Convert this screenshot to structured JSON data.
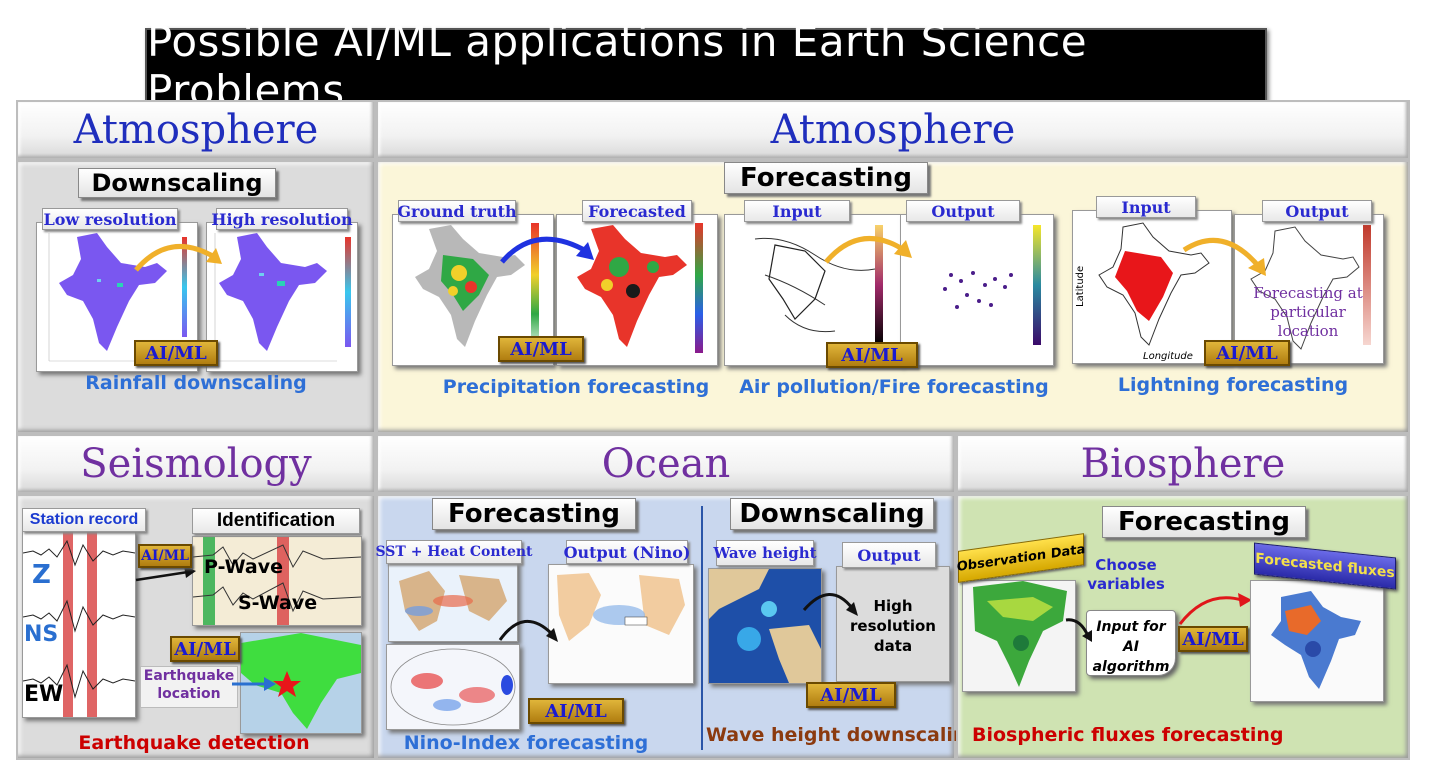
{
  "title": "Possible AI/ML applications in Earth Science Problems",
  "aiml_label": "AI/ML",
  "sections": {
    "atmosphere_left": {
      "header": "Atmosphere",
      "subtitle": "Downscaling",
      "input_tag": "Low resolution",
      "output_tag": "High resolution",
      "caption": "Rainfall downscaling"
    },
    "atmosphere_right": {
      "header": "Atmosphere",
      "subtitle": "Forecasting",
      "precip": {
        "input_tag": "Ground truth",
        "output_tag": "Forecasted",
        "caption": "Precipitation forecasting"
      },
      "air": {
        "input_tag": "Input",
        "output_tag": "Output",
        "caption": "Air pollution/Fire forecasting"
      },
      "lightning": {
        "input_tag": "Input",
        "output_tag": "Output",
        "output_note": "Forecasting at particular location",
        "ylabel": "Latitude",
        "xlabel": "Longitude",
        "caption": "Lightning forecasting"
      }
    },
    "seismology": {
      "header": "Seismology",
      "input_tag": "Station record",
      "output_tag": "Identification",
      "channels": [
        "Z",
        "NS",
        "EW"
      ],
      "p_wave": "P-Wave",
      "s_wave": "S-Wave",
      "location_note": "Earthquake location",
      "caption": "Earthquake detection"
    },
    "ocean": {
      "header": "Ocean",
      "forecast": {
        "subtitle": "Forecasting",
        "input_tag": "SST + Heat Content",
        "output_tag": "Output (Nino)",
        "caption": "Nino-Index forecasting"
      },
      "downscale": {
        "subtitle": "Downscaling",
        "input_tag": "Wave height",
        "output_tag": "Output",
        "output_note": "High resolution data",
        "caption": "Wave height downscaling"
      }
    },
    "biosphere": {
      "header": "Biosphere",
      "subtitle": "Forecasting",
      "obs_tag": "Observation Data",
      "choose": "Choose variables",
      "input_note": "Input for AI algorithm",
      "output_tag": "Forecasted fluxes",
      "caption": "Biospheric fluxes forecasting"
    }
  },
  "colors": {
    "caption_blue": "#2e6fd6",
    "caption_red": "#cc0000",
    "caption_brown": "#8b3a0f",
    "header_blue": "#1f2ebd",
    "header_purple": "#7030a0",
    "ocean_bg": "#c9d7ee",
    "bio_bg": "#cfe3b2",
    "forecast_bg": "#fbf6d9",
    "downscale_bg": "#dcdcdc"
  }
}
